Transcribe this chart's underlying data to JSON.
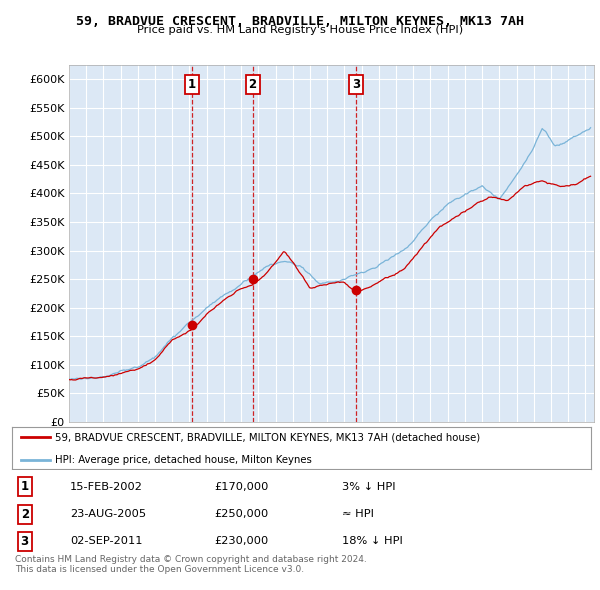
{
  "title": "59, BRADVUE CRESCENT, BRADVILLE, MILTON KEYNES, MK13 7AH",
  "subtitle": "Price paid vs. HM Land Registry's House Price Index (HPI)",
  "ylabel_ticks": [
    "£0",
    "£50K",
    "£100K",
    "£150K",
    "£200K",
    "£250K",
    "£300K",
    "£350K",
    "£400K",
    "£450K",
    "£500K",
    "£550K",
    "£600K"
  ],
  "ytick_vals": [
    0,
    50000,
    100000,
    150000,
    200000,
    250000,
    300000,
    350000,
    400000,
    450000,
    500000,
    550000,
    600000
  ],
  "ylim": [
    0,
    625000
  ],
  "xlim_start": 1995.0,
  "xlim_end": 2025.5,
  "sale_dates": [
    2002.12,
    2005.67,
    2011.67
  ],
  "sale_prices": [
    170000,
    250000,
    230000
  ],
  "sale_labels": [
    "1",
    "2",
    "3"
  ],
  "hpi_color": "#7ab4d8",
  "price_color": "#cc0000",
  "dashed_color": "#cc0000",
  "plot_bg": "#dce8f5",
  "legend_entries": [
    "59, BRADVUE CRESCENT, BRADVILLE, MILTON KEYNES, MK13 7AH (detached house)",
    "HPI: Average price, detached house, Milton Keynes"
  ],
  "table_data": [
    [
      "1",
      "15-FEB-2002",
      "£170,000",
      "3% ↓ HPI"
    ],
    [
      "2",
      "23-AUG-2005",
      "£250,000",
      "≈ HPI"
    ],
    [
      "3",
      "02-SEP-2011",
      "£230,000",
      "18% ↓ HPI"
    ]
  ],
  "footnote": "Contains HM Land Registry data © Crown copyright and database right 2024.\nThis data is licensed under the Open Government Licence v3.0."
}
